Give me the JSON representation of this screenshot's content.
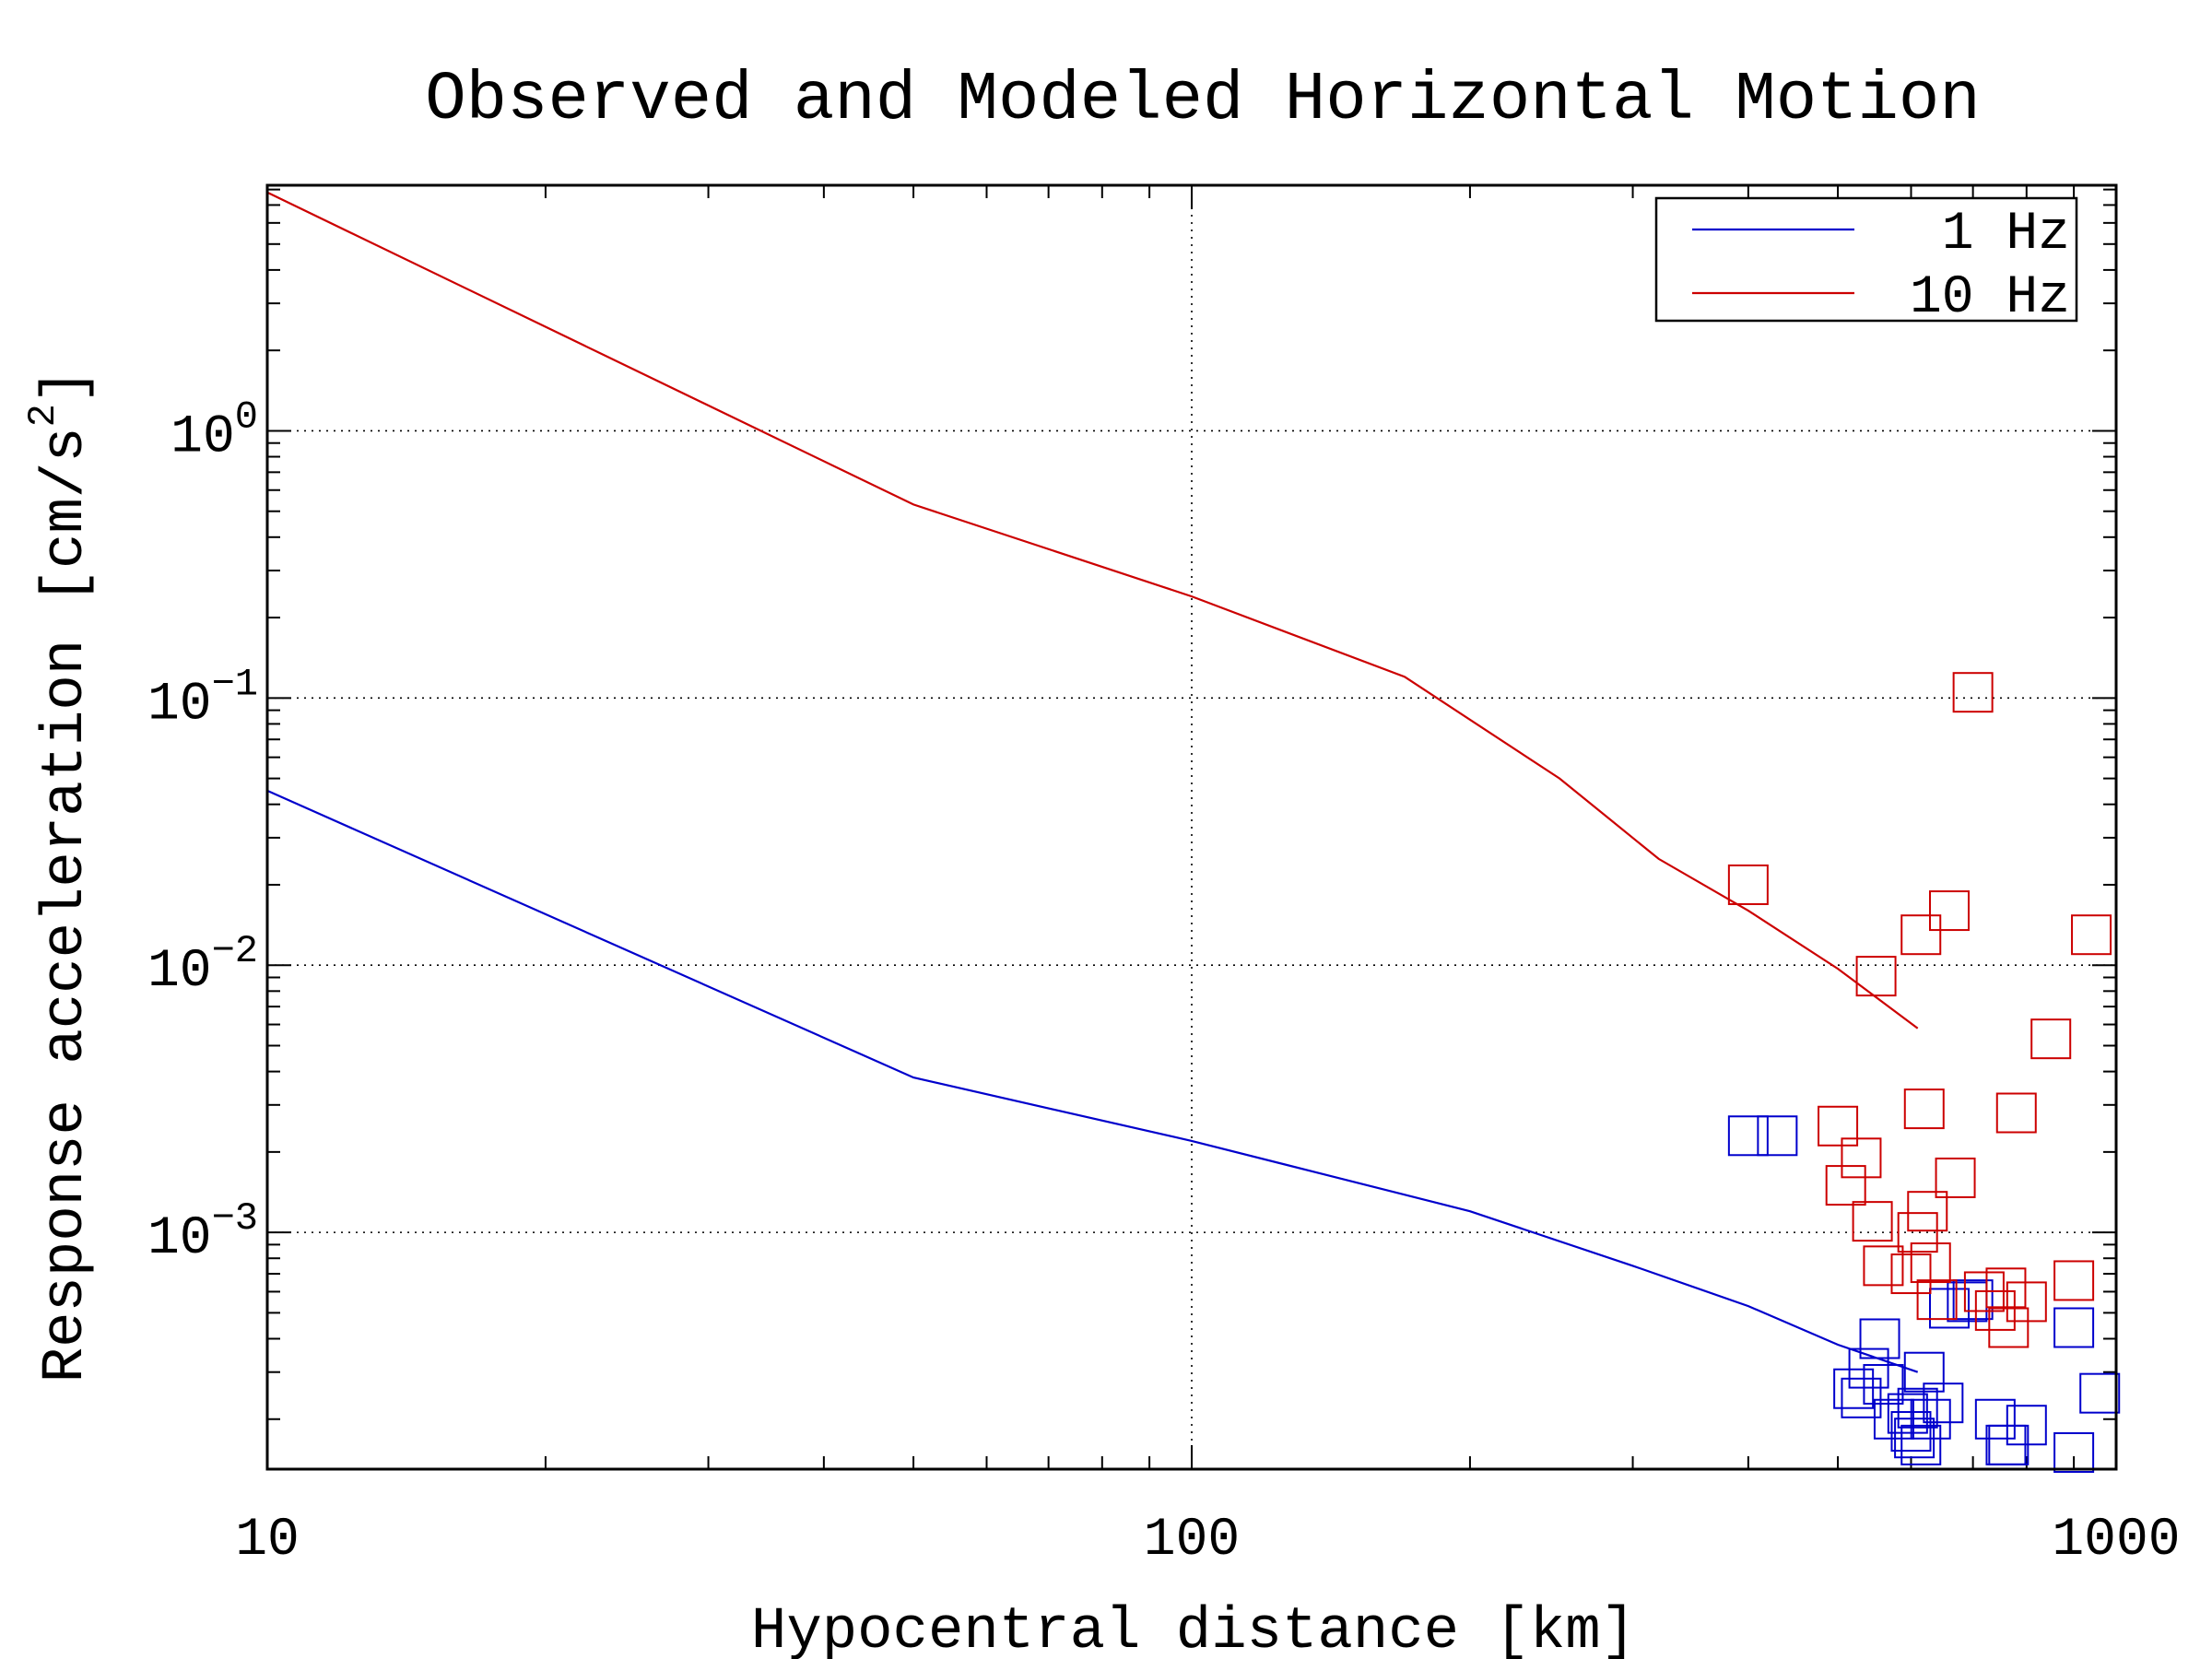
{
  "chart_data": {
    "type": "line",
    "title": "Observed and Modeled Horizontal Motion",
    "xlabel": "Hypocentral distance [km]",
    "ylabel": "Response acceleration [cm/s",
    "ylabel_sup": "2",
    "ylabel_end": "]",
    "xscale": "log",
    "yscale": "log",
    "xlim": [
      10,
      1000
    ],
    "ylim": [
      0.00013,
      8.3
    ],
    "x_ticks": [
      {
        "value": 10,
        "label": "10"
      },
      {
        "value": 100,
        "label": "100"
      },
      {
        "value": 1000,
        "label": "1000"
      }
    ],
    "y_ticks": [
      {
        "value": 1,
        "base": "10",
        "exp": "0"
      },
      {
        "value": 0.1,
        "base": "10",
        "exp": "−1"
      },
      {
        "value": 0.01,
        "base": "10",
        "exp": "−2"
      },
      {
        "value": 0.001,
        "base": "10",
        "exp": "−3"
      }
    ],
    "grid": true,
    "legend_position": "top-right",
    "series": [
      {
        "name": "1 Hz",
        "color": "#0000cc",
        "x": [
          10,
          50,
          100,
          200,
          300,
          400,
          500,
          610
        ],
        "y": [
          0.045,
          0.0038,
          0.0022,
          0.0012,
          0.00075,
          0.00053,
          0.00038,
          0.0003
        ]
      },
      {
        "name": "10 Hz",
        "color": "#cc0000",
        "x": [
          10,
          50,
          100,
          170,
          250,
          320,
          400,
          500,
          610
        ],
        "y": [
          7.8,
          0.53,
          0.24,
          0.12,
          0.05,
          0.025,
          0.016,
          0.0097,
          0.0058
        ]
      }
    ],
    "observed_points": [
      {
        "series": "1 Hz",
        "color": "#0000cc",
        "x": [
          400,
          430,
          520,
          530,
          540,
          555,
          560,
          575,
          595,
          600,
          605,
          610,
          615,
          620,
          630,
          650,
          660,
          690,
          700,
          740,
          760,
          765,
          800,
          900,
          900,
          960
        ],
        "y": [
          0.0023,
          0.0023,
          0.00026,
          0.00024,
          0.00031,
          0.0004,
          0.00027,
          0.0002,
          0.00021,
          0.00018,
          0.00017,
          0.00022,
          0.00016,
          0.0003,
          0.0002,
          0.00023,
          0.00052,
          0.00055,
          0.00056,
          0.0002,
          0.00016,
          0.00016,
          0.00019,
          0.00015,
          0.00044,
          0.00025
        ]
      },
      {
        "series": "10 Hz",
        "color": "#cc0000",
        "x": [
          400,
          500,
          510,
          530,
          545,
          550,
          560,
          600,
          610,
          615,
          620,
          625,
          630,
          640,
          660,
          670,
          700,
          720,
          740,
          760,
          765,
          780,
          800,
          850,
          900,
          940
        ],
        "y": [
          0.02,
          0.0025,
          0.0015,
          0.0019,
          0.0011,
          0.0091,
          0.00075,
          0.0007,
          0.001,
          0.013,
          0.0029,
          0.0012,
          0.00077,
          0.00056,
          0.016,
          0.0016,
          0.105,
          0.0006,
          0.00051,
          0.00062,
          0.00044,
          0.0028,
          0.00055,
          0.0053,
          0.00066,
          0.013
        ]
      }
    ]
  }
}
